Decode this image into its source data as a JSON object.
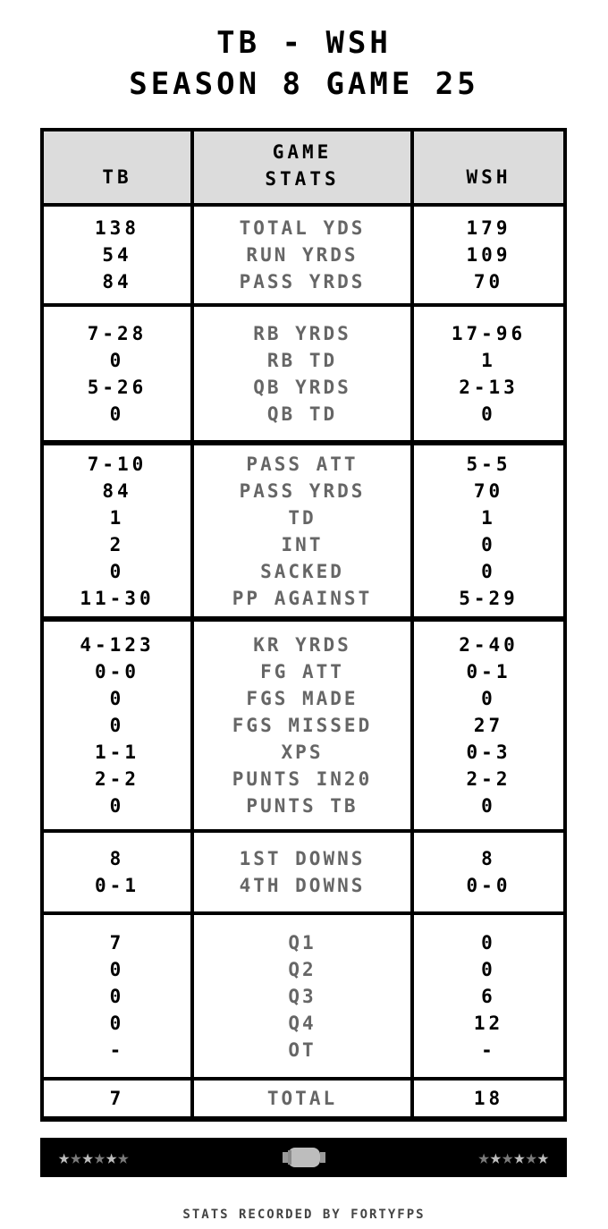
{
  "title": {
    "matchup": "TB - WSH",
    "subtitle": "SEASON 8 GAME 25"
  },
  "header": {
    "home": "TB",
    "stats": "GAME\nSTATS",
    "stats_line1": "GAME",
    "stats_line2": "STATS",
    "away": "WSH"
  },
  "sections": [
    {
      "rows": [
        [
          "138",
          "TOTAL YDS",
          "179"
        ],
        [
          "54",
          "RUN YRDS",
          "109"
        ],
        [
          "84",
          "PASS YRDS",
          "70"
        ]
      ]
    },
    {
      "rows": [
        [
          "7-28",
          "RB YRDS",
          "17-96"
        ],
        [
          "0",
          "RB TD",
          "1"
        ],
        [
          "5-26",
          "QB YRDS",
          "2-13"
        ],
        [
          "0",
          "QB TD",
          "0"
        ]
      ]
    },
    {
      "rows": [
        [
          "7-10",
          "PASS ATT",
          "5-5"
        ],
        [
          "84",
          "PASS YRDS",
          "70"
        ],
        [
          "1",
          "TD",
          "1"
        ],
        [
          "2",
          "INT",
          "0"
        ],
        [
          "0",
          "SACKED",
          "0"
        ],
        [
          "11-30",
          "PP AGAINST",
          "5-29"
        ]
      ]
    },
    {
      "rows": [
        [
          "4-123",
          "KR YRDS",
          "2-40"
        ],
        [
          "0-0",
          "FG ATT",
          "0-1"
        ],
        [
          "0",
          "FGS MADE",
          "0"
        ],
        [
          "0",
          "FGS MISSED",
          "27"
        ],
        [
          "1-1",
          "XPS",
          "0-3"
        ],
        [
          "2-2",
          "PUNTS IN20",
          "2-2"
        ],
        [
          "0",
          "PUNTS TB",
          "0"
        ]
      ]
    },
    {
      "rows": [
        [
          "8",
          "1ST DOWNS",
          "8"
        ],
        [
          "0-1",
          "4TH DOWNS",
          "0-0"
        ]
      ]
    },
    {
      "rows": [
        [
          "7",
          "Q1",
          "0"
        ],
        [
          "0",
          "Q2",
          "0"
        ],
        [
          "0",
          "Q3",
          "6"
        ],
        [
          "0",
          "Q4",
          "12"
        ],
        [
          "-",
          "OT",
          "-"
        ]
      ]
    },
    {
      "rows": [
        [
          "7",
          "TOTAL",
          "18"
        ]
      ]
    }
  ],
  "footer": {
    "home_stars": [
      "light",
      "dark",
      "light",
      "dark",
      "light",
      "dark"
    ],
    "away_stars": [
      "dark",
      "light",
      "dark",
      "light",
      "dark",
      "light"
    ],
    "center_icon": "football-icon",
    "star_colors": {
      "light": "#bdbdbd",
      "dark": "#7a7a7a"
    }
  },
  "credit": "STATS RECORDED BY FORTYFPS"
}
